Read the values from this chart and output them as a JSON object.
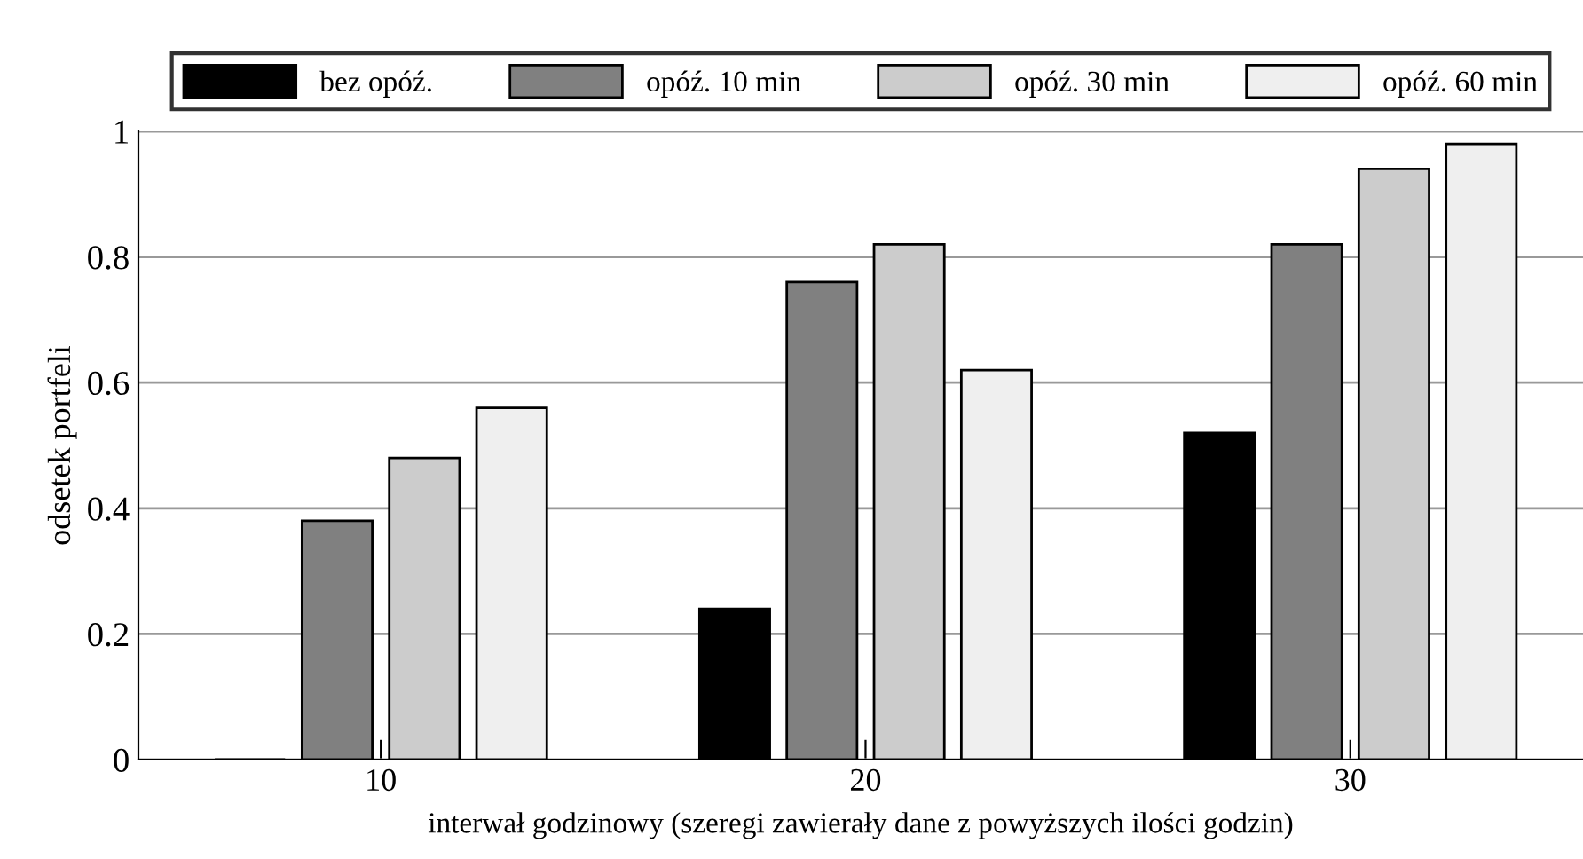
{
  "chart_data": {
    "type": "bar",
    "xlabel": "interwał godzinowy (szeregi zawierały dane z powyższych ilości godzin)",
    "ylabel": "odsetek portfeli",
    "categories": [
      "10",
      "20",
      "30"
    ],
    "series": [
      {
        "name": "bez opóź.",
        "color": "#000000",
        "values": [
          0,
          0.24,
          0.52
        ]
      },
      {
        "name": "opóź. 10 min",
        "color": "#808080",
        "values": [
          0.38,
          0.76,
          0.82
        ]
      },
      {
        "name": "opóź. 30 min",
        "color": "#cccccc",
        "values": [
          0.48,
          0.82,
          0.94
        ]
      },
      {
        "name": "opóź. 60 min",
        "color": "#efefef",
        "values": [
          0.56,
          0.62,
          0.98
        ]
      }
    ],
    "ylim": [
      0,
      1
    ],
    "yticks": [
      0,
      0.2,
      0.4,
      0.6,
      0.8,
      1
    ],
    "grid": "y",
    "legend": "top"
  }
}
